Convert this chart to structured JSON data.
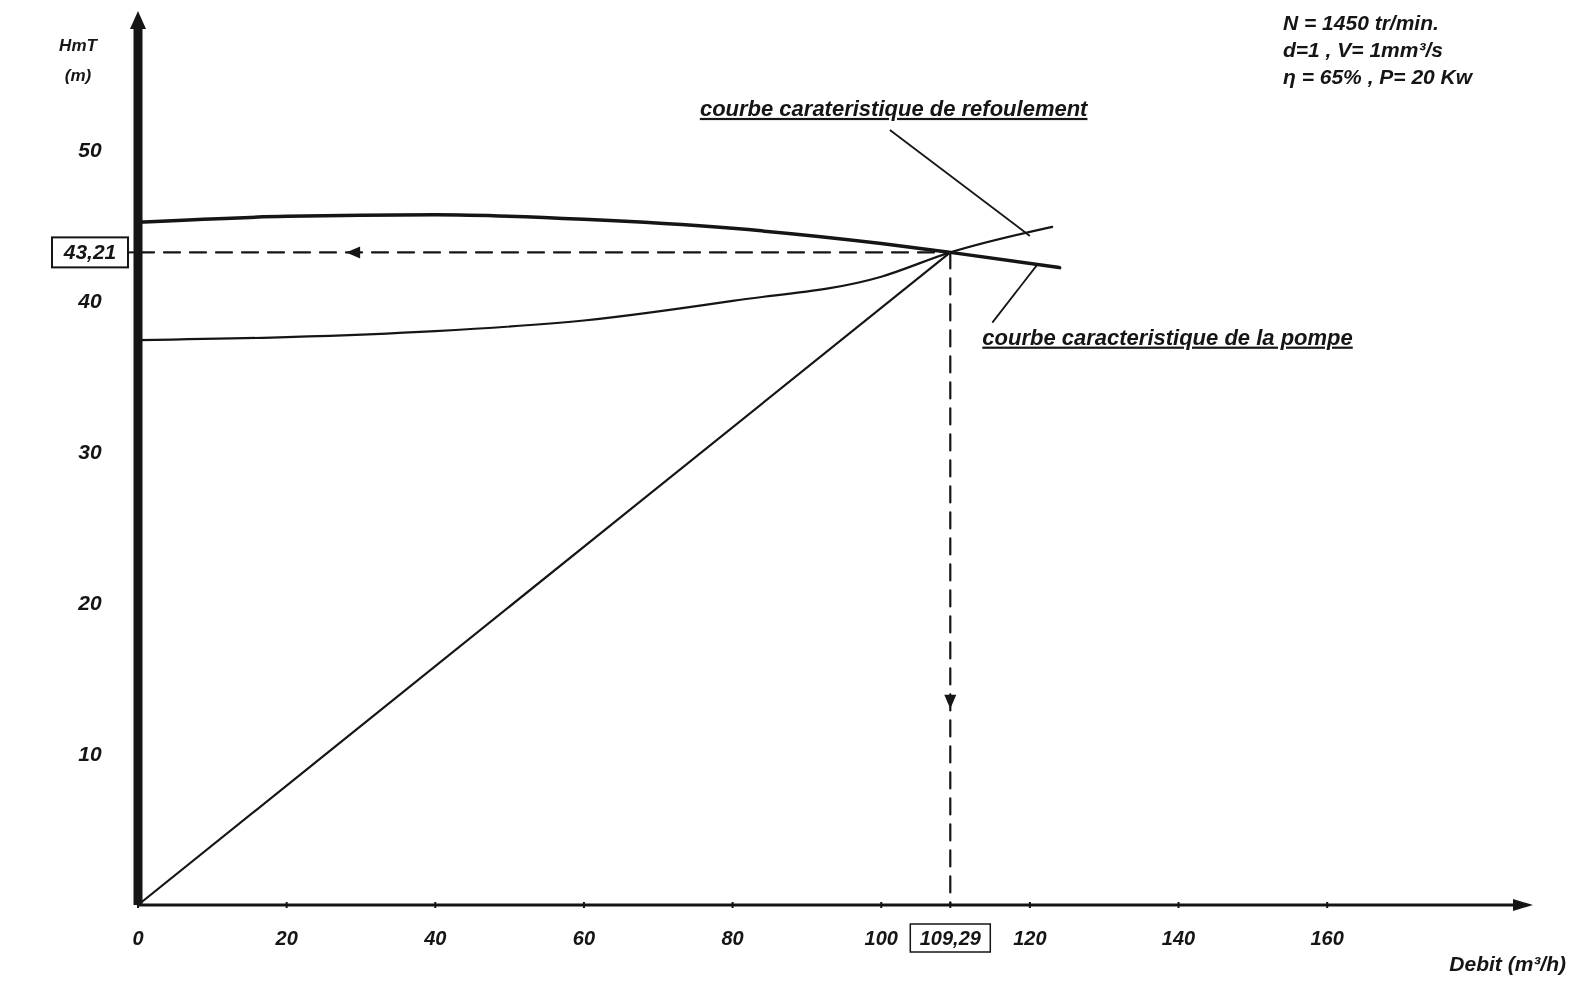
{
  "chart_data": {
    "type": "line",
    "xlabel": "Debit (m³/h)",
    "ylabel": "HmT (m)",
    "xlim": [
      0,
      185
    ],
    "ylim": [
      0,
      58
    ],
    "xticks": [
      0,
      20,
      40,
      60,
      80,
      100,
      {
        "value": 109.29,
        "label": "109,29"
      },
      120,
      140,
      160
    ],
    "yticks": [
      10,
      20,
      30,
      40,
      {
        "value": 43.21,
        "label": "43,21"
      },
      50
    ],
    "marker": "none",
    "series": [
      {
        "color": "#151515",
        "x": [
          0,
          20,
          40,
          60,
          80,
          100,
          109.29,
          124
        ],
        "values": [
          45.2,
          45.6,
          45.7,
          45.4,
          44.8,
          43.8,
          43.21,
          42.2
        ],
        "line_style": "solid"
      },
      {
        "color": "#151515",
        "x": [
          0,
          20,
          40,
          60,
          80,
          100,
          109.29,
          123
        ],
        "values": [
          37.4,
          37.6,
          38.0,
          38.7,
          40.0,
          41.6,
          43.21,
          44.9
        ],
        "line_style": "solid"
      },
      {
        "color": "#151515",
        "x": [
          0,
          109.29
        ],
        "values": [
          0,
          43.21
        ],
        "line_style": "solid"
      },
      {
        "color": "#151515",
        "x": [
          0,
          109.29
        ],
        "values": [
          43.21,
          43.21
        ],
        "line_style": "dashed"
      },
      {
        "color": "#151515",
        "x": [
          109.29,
          109.29
        ],
        "values": [
          43.21,
          0
        ],
        "line_style": "dashed"
      }
    ],
    "annotations": [
      {
        "text": "courbe carateristique de refoulement",
        "x": 120,
        "y": 44.3
      },
      {
        "text": "courbe caracteristique de la pompe",
        "x": 121,
        "y": 42.4
      },
      "N = 1450 tr/min.",
      "d=1 , V= 1mm³/s",
      "η = 65% , P= 20 Kw"
    ]
  }
}
